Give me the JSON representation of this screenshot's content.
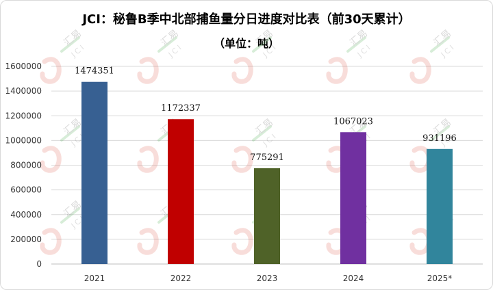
{
  "chart_data": {
    "type": "bar",
    "title": "JCI：秘鲁B季中北部捕鱼量分日进度对比表（前30天累计）",
    "subtitle": "（单位：吨）",
    "categories": [
      "2021",
      "2022",
      "2023",
      "2024",
      "2025*"
    ],
    "values": [
      1474351,
      1172337,
      775291,
      1067023,
      931196
    ],
    "data_labels": [
      "1474351",
      "1172337",
      "775291",
      "1067023",
      "931196"
    ],
    "colors": [
      "#376092",
      "#c00000",
      "#4f6228",
      "#7030a0",
      "#31859c"
    ],
    "ylim": [
      0,
      1600000
    ],
    "yticks": [
      0,
      200000,
      400000,
      600000,
      800000,
      1000000,
      1200000,
      1400000,
      1600000
    ],
    "ytick_labels": [
      "0",
      "200000",
      "400000",
      "600000",
      "800000",
      "1000000",
      "1200000",
      "1400000",
      "1600000"
    ],
    "xlabel": "",
    "ylabel": "",
    "grid": true,
    "legend": "none"
  },
  "watermark": {
    "text": "汇易",
    "subtext": "JCI"
  }
}
